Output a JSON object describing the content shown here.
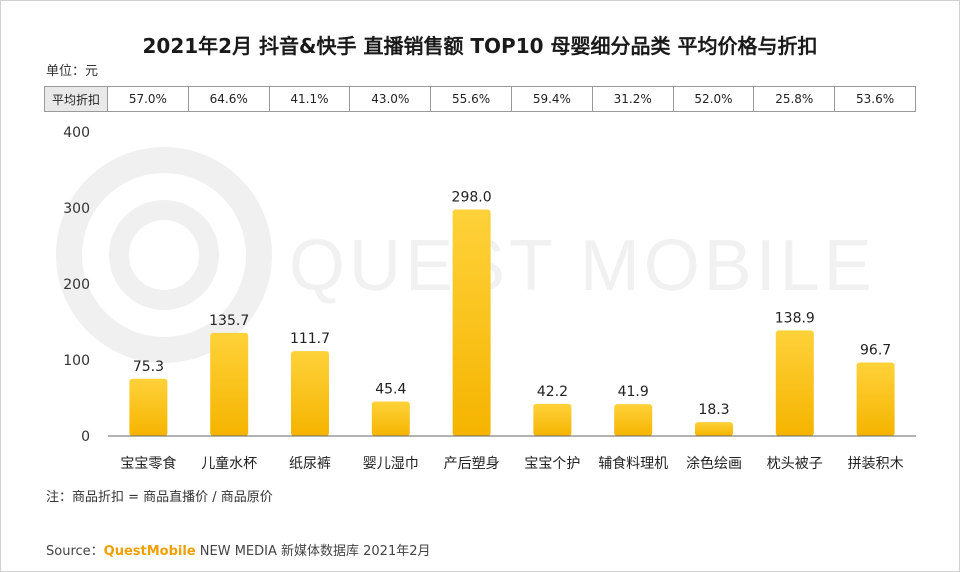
{
  "chart_data": {
    "type": "bar",
    "title": "2021年2月 抖音&快手 直播销售额 TOP10 母婴细分品类 平均价格与折扣",
    "unit_label": "单位：元",
    "categories": [
      "宝宝零食",
      "儿童水杯",
      "纸尿裤",
      "婴儿湿巾",
      "产后塑身",
      "宝宝个护",
      "辅食料理机",
      "涂色绘画",
      "枕头被子",
      "拼装积木"
    ],
    "values": [
      75.3,
      135.7,
      111.7,
      45.4,
      298.0,
      42.2,
      41.9,
      18.3,
      138.9,
      96.7
    ],
    "value_labels": [
      "75.3",
      "135.7",
      "111.7",
      "45.4",
      "298.0",
      "42.2",
      "41.9",
      "18.3",
      "138.9",
      "96.7"
    ],
    "ylim": [
      0,
      400
    ],
    "yticks": [
      "0",
      "100",
      "200",
      "300",
      "400"
    ],
    "discount_label": "平均折扣",
    "discounts": [
      "57.0%",
      "64.6%",
      "41.1%",
      "43.0%",
      "55.6%",
      "59.4%",
      "31.2%",
      "52.0%",
      "25.8%",
      "53.6%"
    ],
    "xlabel": "",
    "ylabel": ""
  },
  "note": "注：商品折扣 = 商品直播价 / 商品原价",
  "source": {
    "prefix": "Source：",
    "brand": "QuestMobile",
    "rest": " NEW MEDIA 新媒体数据库 2021年2月"
  },
  "watermark": "QUEST MOBILE",
  "colors": {
    "bar_top": "#ffd23a",
    "bar_bottom": "#f5b400",
    "axis": "#666666"
  }
}
